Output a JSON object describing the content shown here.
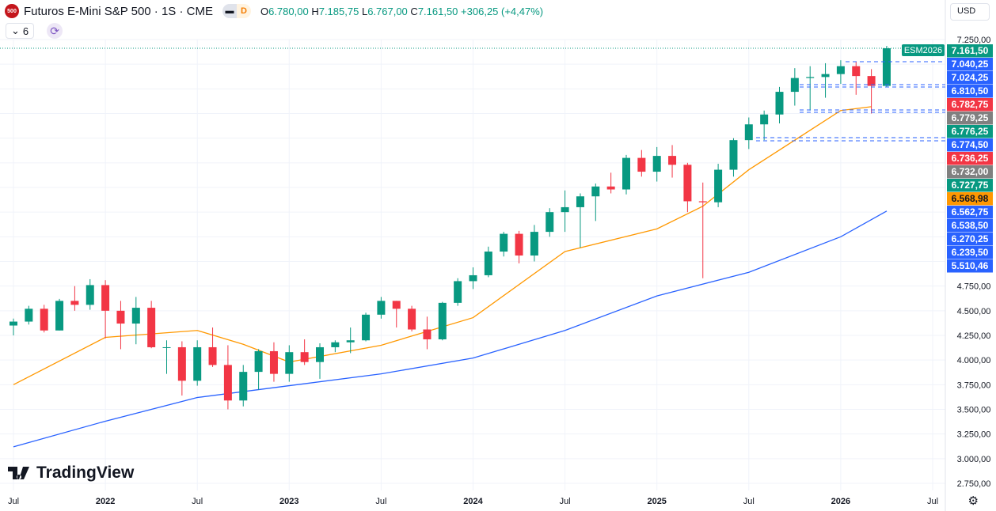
{
  "header": {
    "symbol_logo": "500",
    "title": "Futuros E-Mini S&P 500 · 1S · CME",
    "badge_a": "▬",
    "badge_d": "D",
    "o_label": "O",
    "o": "6.780,00",
    "h_label": "H",
    "h": "7.185,75",
    "l_label": "L",
    "l": "6.767,00",
    "c_label": "C",
    "c": "7.161,50",
    "change": "+306,25 (+4,47%)",
    "indicator_count": "6",
    "currency": "USD"
  },
  "watermark": "TradingView",
  "colors": {
    "up": "#089981",
    "down": "#f23645",
    "ma_orange": "#ff9800",
    "ma_blue": "#2962ff",
    "grid": "#f0f3fa"
  },
  "chart_data": {
    "type": "candlestick",
    "ylim": [
      2750,
      7250
    ],
    "y_ticks": [
      "7.250,00",
      "4.750,00",
      "4.500,00",
      "4.250,00",
      "4.000,00",
      "3.750,00",
      "3.500,00",
      "3.250,00",
      "3.000,00",
      "2.750,00"
    ],
    "y_tick_values": [
      7250,
      4750,
      4500,
      4250,
      4000,
      3750,
      3500,
      3250,
      3000,
      2750
    ],
    "x_ticks": [
      "Jul",
      "2022",
      "Jul",
      "2023",
      "Jul",
      "2024",
      "Jul",
      "2025",
      "Jul",
      "2026",
      "Jul"
    ],
    "x_tick_dates": [
      "2021-07",
      "2022-01",
      "2022-07",
      "2023-01",
      "2023-07",
      "2024-01",
      "2024-07",
      "2025-01",
      "2025-07",
      "2026-01",
      "2026-07"
    ],
    "start": "2021-07",
    "closes": [
      4390,
      4520,
      4300,
      4600,
      4560,
      4760,
      4500,
      4370,
      4530,
      4130,
      4130,
      3790,
      4130,
      3950,
      3590,
      3880,
      4090,
      3860,
      4080,
      3980,
      4130,
      4180,
      4200,
      4460,
      4600,
      4520,
      4310,
      4210,
      4580,
      4800,
      4860,
      5100,
      5280,
      5060,
      5300,
      5500,
      5550,
      5660,
      5760,
      5730,
      6050,
      5910,
      6070,
      5980,
      5610,
      5600,
      5930,
      6230,
      6390,
      6490,
      6720,
      6860,
      6870,
      6900,
      6980,
      6880,
      6780,
      7161.5
    ],
    "highs": [
      4420,
      4550,
      4560,
      4620,
      4750,
      4820,
      4810,
      4600,
      4640,
      4600,
      4200,
      4190,
      4200,
      4330,
      4150,
      3950,
      4110,
      4180,
      4150,
      4210,
      4170,
      4200,
      4330,
      4480,
      4640,
      4600,
      4550,
      4440,
      4590,
      4830,
      4940,
      5150,
      5300,
      5310,
      5370,
      5540,
      5720,
      5690,
      5790,
      5900,
      6080,
      6130,
      6160,
      6180,
      6000,
      5800,
      5990,
      6250,
      6460,
      6530,
      6770,
      6960,
      6980,
      7010,
      7040,
      7024,
      6950,
      7185.75
    ],
    "lows": [
      4250,
      4360,
      4280,
      4300,
      4500,
      4510,
      4220,
      4110,
      4160,
      4120,
      3860,
      3640,
      3740,
      3930,
      3500,
      3530,
      3700,
      3780,
      3780,
      3950,
      3810,
      4080,
      4070,
      4190,
      4420,
      4330,
      4290,
      4110,
      4200,
      4550,
      4720,
      4840,
      5050,
      4980,
      5000,
      5250,
      5300,
      5140,
      5410,
      5690,
      5680,
      5860,
      5810,
      5850,
      5500,
      4830,
      5550,
      5860,
      6140,
      6230,
      6400,
      6580,
      6530,
      6660,
      6800,
      6690,
      6500,
      6767
    ],
    "series": [
      {
        "type": "line",
        "color": "#ff9800",
        "points": [
          [
            "2021-07",
            3750
          ],
          [
            "2022-01",
            4230
          ],
          [
            "2022-07",
            4300
          ],
          [
            "2022-10",
            4160
          ],
          [
            "2023-01",
            3980
          ],
          [
            "2023-07",
            4150
          ],
          [
            "2024-01",
            4430
          ],
          [
            "2024-07",
            5100
          ],
          [
            "2025-01",
            5330
          ],
          [
            "2025-04",
            5560
          ],
          [
            "2025-07",
            5930
          ],
          [
            "2026-01",
            6530
          ],
          [
            "2026-03",
            6569
          ]
        ]
      },
      {
        "type": "line",
        "color": "#2962ff",
        "points": [
          [
            "2021-07",
            3120
          ],
          [
            "2022-01",
            3380
          ],
          [
            "2022-07",
            3620
          ],
          [
            "2023-01",
            3740
          ],
          [
            "2023-07",
            3860
          ],
          [
            "2024-01",
            4020
          ],
          [
            "2024-07",
            4300
          ],
          [
            "2025-01",
            4650
          ],
          [
            "2025-07",
            4890
          ],
          [
            "2026-01",
            5250
          ],
          [
            "2026-04",
            5510.46
          ]
        ]
      }
    ],
    "last_symbol": "ESM2026",
    "price_labels": [
      {
        "text": "7.161,50",
        "color": "#089981"
      },
      {
        "text": "7.040,25",
        "color": "#2962ff"
      },
      {
        "text": "7.024,25",
        "color": "#2962ff"
      },
      {
        "text": "6.810,50",
        "color": "#2962ff"
      },
      {
        "text": "6.782,75",
        "color": "#f23645"
      },
      {
        "text": "6.779,25",
        "color": "#808080"
      },
      {
        "text": "6.776,25",
        "color": "#089981"
      },
      {
        "text": "6.774,50",
        "color": "#2962ff"
      },
      {
        "text": "6.736,25",
        "color": "#f23645"
      },
      {
        "text": "6.732,00",
        "color": "#808080"
      },
      {
        "text": "6.727,75",
        "color": "#089981"
      },
      {
        "text": "6.568,98",
        "color": "#ff9800"
      },
      {
        "text": "6.562,75",
        "color": "#2962ff"
      },
      {
        "text": "6.538,50",
        "color": "#2962ff"
      },
      {
        "text": "6.270,25",
        "color": "#2962ff"
      },
      {
        "text": "6.239,50",
        "color": "#2962ff"
      },
      {
        "text": "5.510,46",
        "color": "#2962ff"
      }
    ]
  }
}
